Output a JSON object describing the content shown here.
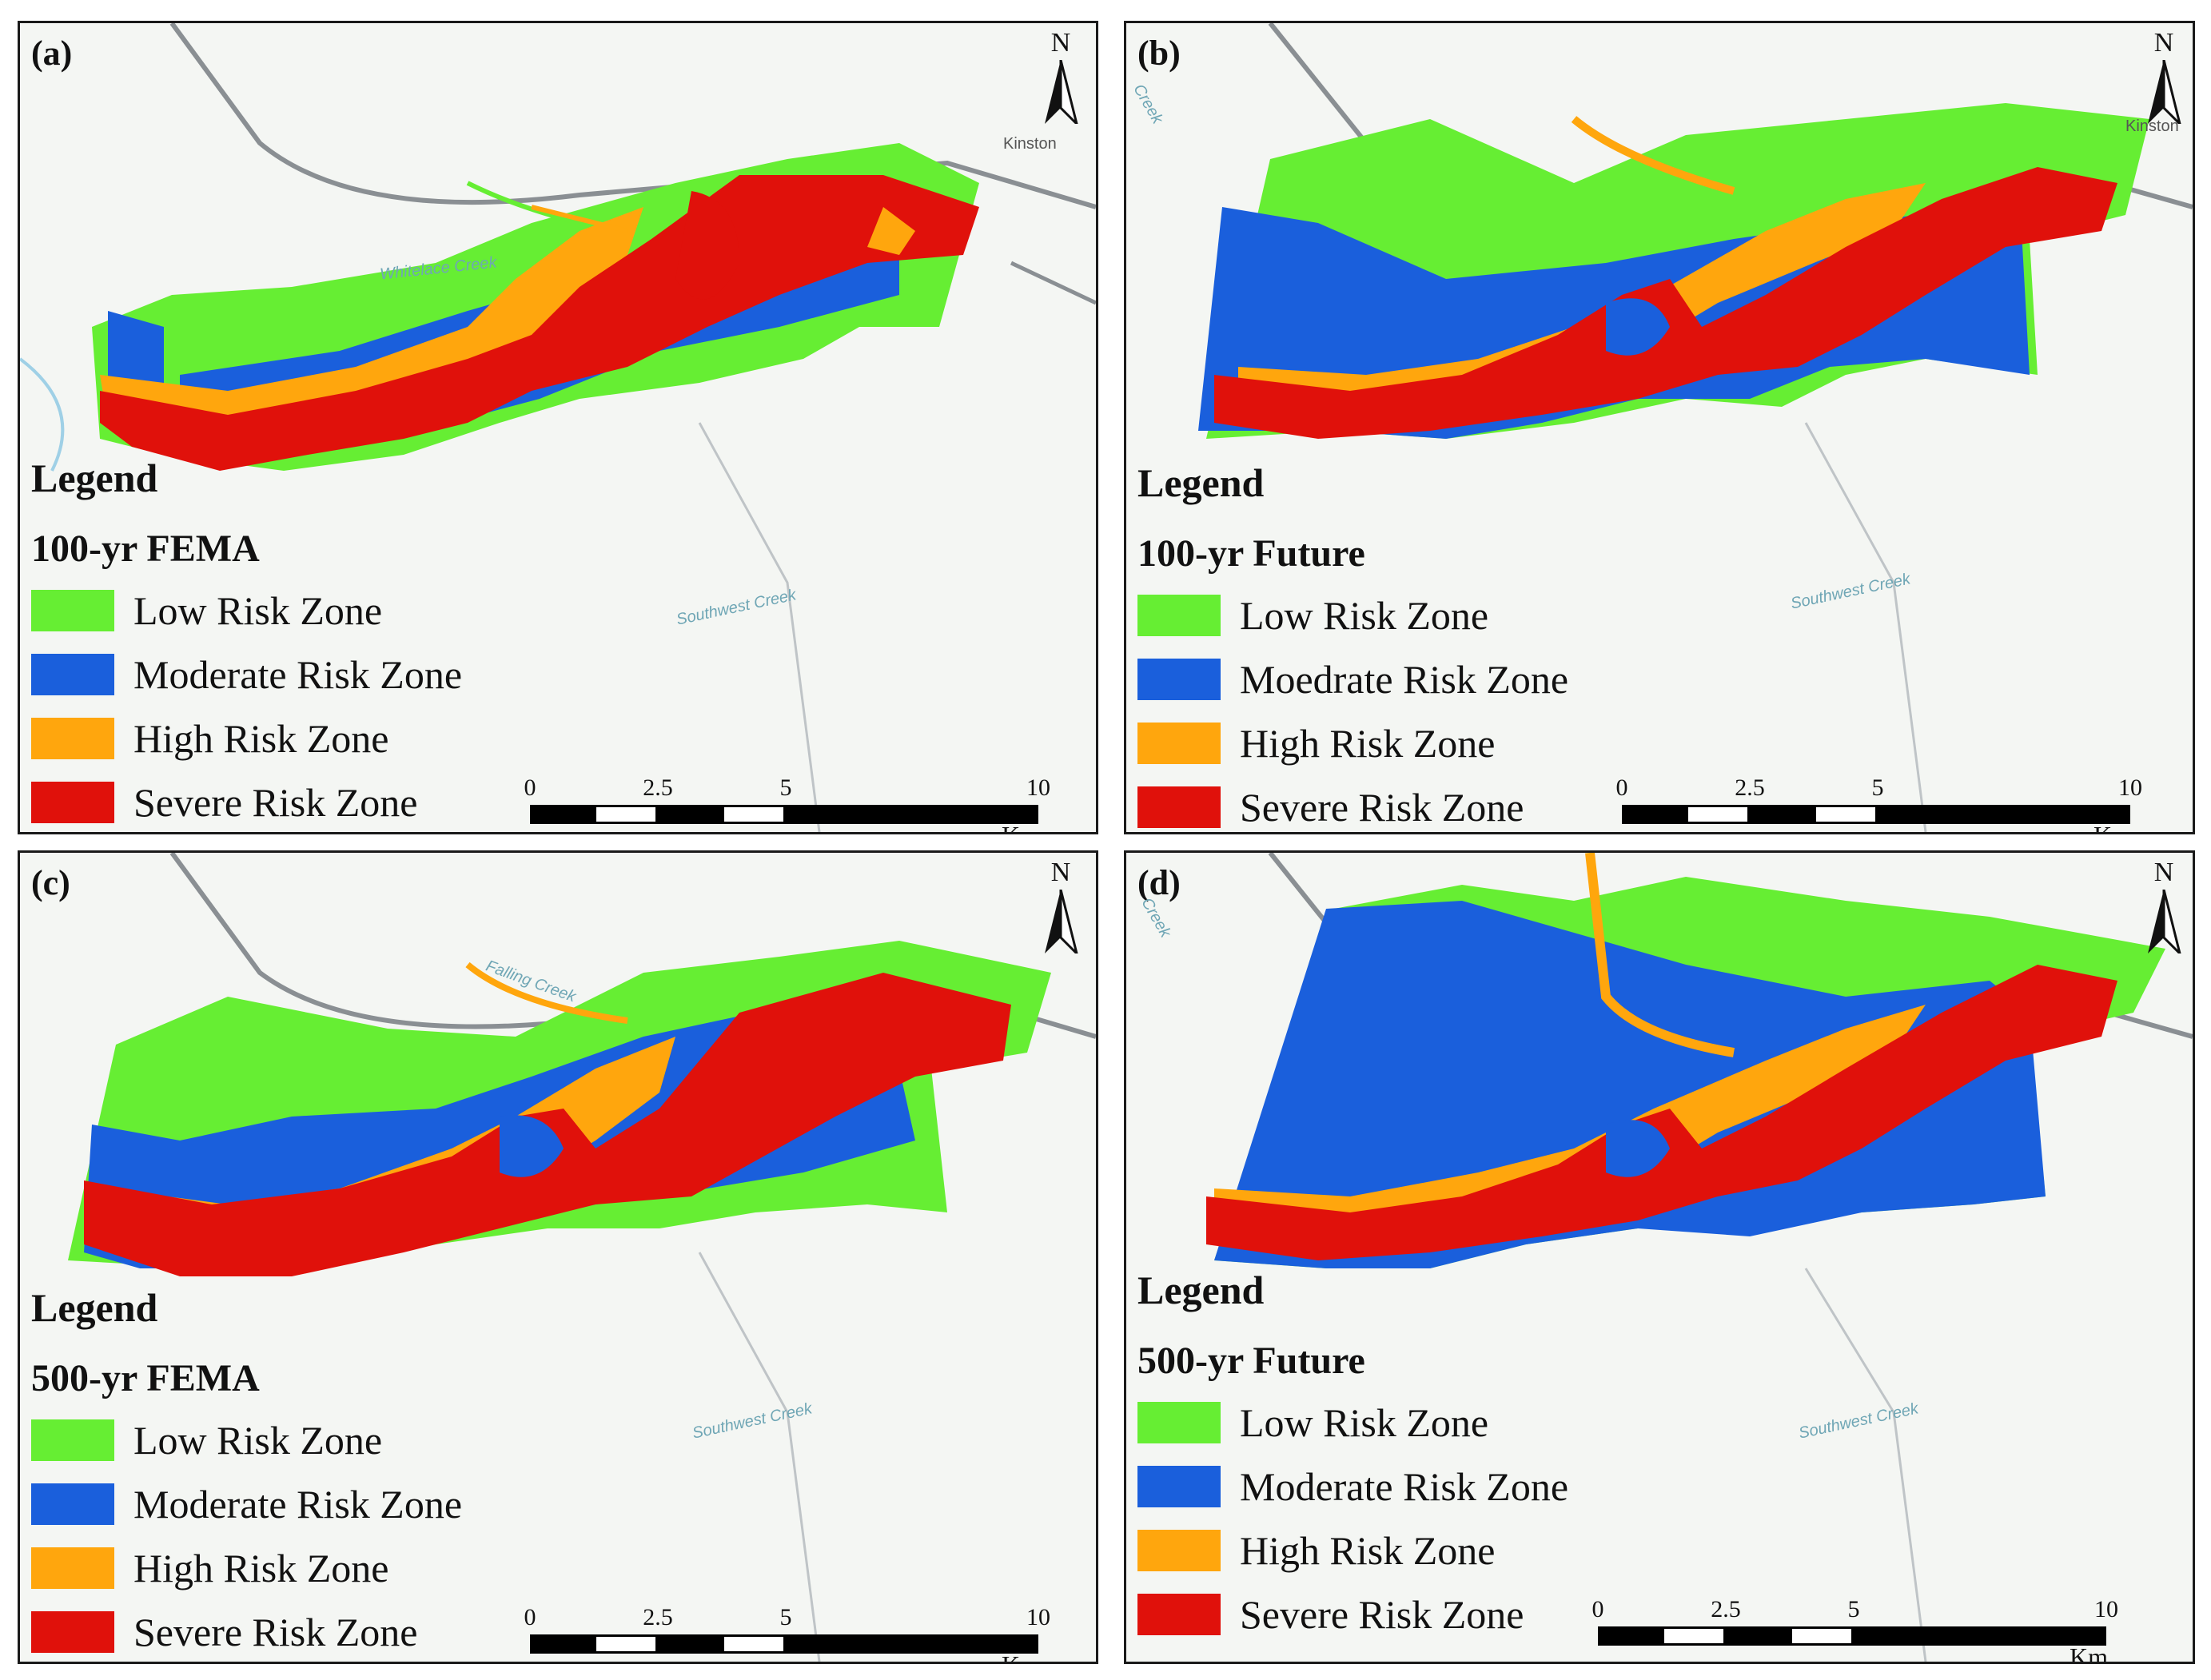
{
  "colors": {
    "low": "#66ee33",
    "moderate": "#1a5fdc",
    "high": "#ffa60d",
    "severe": "#e0110b",
    "basemap": "#f4f6f3",
    "road": "#8a8f93",
    "water": "#9fd0e6"
  },
  "north_label": "N",
  "scale": {
    "ticks": [
      "0",
      "2.5",
      "5",
      "10"
    ],
    "unit": "Km"
  },
  "basemap_labels": {
    "town": "Kinston",
    "creek_sw": "Southwest Creek",
    "creek_wl": "Whitelace Creek",
    "creek_fc": "Falling Creek",
    "creek": "Creek"
  },
  "panels": [
    {
      "label": "(a)",
      "legend_title": "Legend",
      "scenario": "100-yr FEMA",
      "items": [
        "Low Risk Zone",
        "Moderate Risk Zone",
        "High Risk Zone",
        "Severe Risk Zone"
      ]
    },
    {
      "label": "(b)",
      "legend_title": "Legend",
      "scenario": "100-yr Future",
      "items": [
        "Low Risk Zone",
        "Moedrate Risk Zone",
        "High Risk Zone",
        "Severe Risk Zone"
      ]
    },
    {
      "label": "(c)",
      "legend_title": "Legend",
      "scenario": "500-yr FEMA",
      "items": [
        "Low Risk Zone",
        "Moderate Risk Zone",
        "High Risk Zone",
        "Severe Risk Zone"
      ]
    },
    {
      "label": "(d)",
      "legend_title": "Legend",
      "scenario": "500-yr Future",
      "items": [
        "Low Risk Zone",
        "Moderate Risk Zone",
        "High Risk Zone",
        "Severe Risk Zone"
      ]
    }
  ]
}
